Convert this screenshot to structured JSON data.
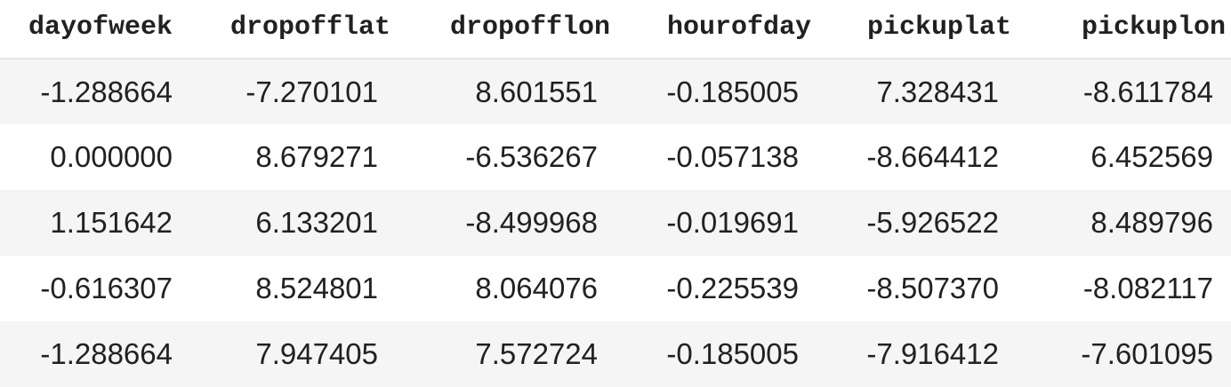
{
  "table": {
    "columns": [
      "dayofweek",
      "dropofflat",
      "dropofflon",
      "hourofday",
      "pickuplat",
      "pickuplon"
    ],
    "rows": [
      [
        "-1.288664",
        "-7.270101",
        "8.601551",
        "-0.185005",
        "7.328431",
        "-8.611784"
      ],
      [
        "0.000000",
        "8.679271",
        "-6.536267",
        "-0.057138",
        "-8.664412",
        "6.452569"
      ],
      [
        "1.151642",
        "6.133201",
        "-8.499968",
        "-0.019691",
        "-5.926522",
        "8.489796"
      ],
      [
        "-0.616307",
        "8.524801",
        "8.064076",
        "-0.225539",
        "-8.507370",
        "-8.082117"
      ],
      [
        "-1.288664",
        "7.947405",
        "7.572724",
        "-0.185005",
        "-7.916412",
        "-7.601095"
      ]
    ],
    "colors": {
      "stripe": "#f5f5f5",
      "text": "#212121",
      "header_rule": "#e3e3e3"
    }
  }
}
